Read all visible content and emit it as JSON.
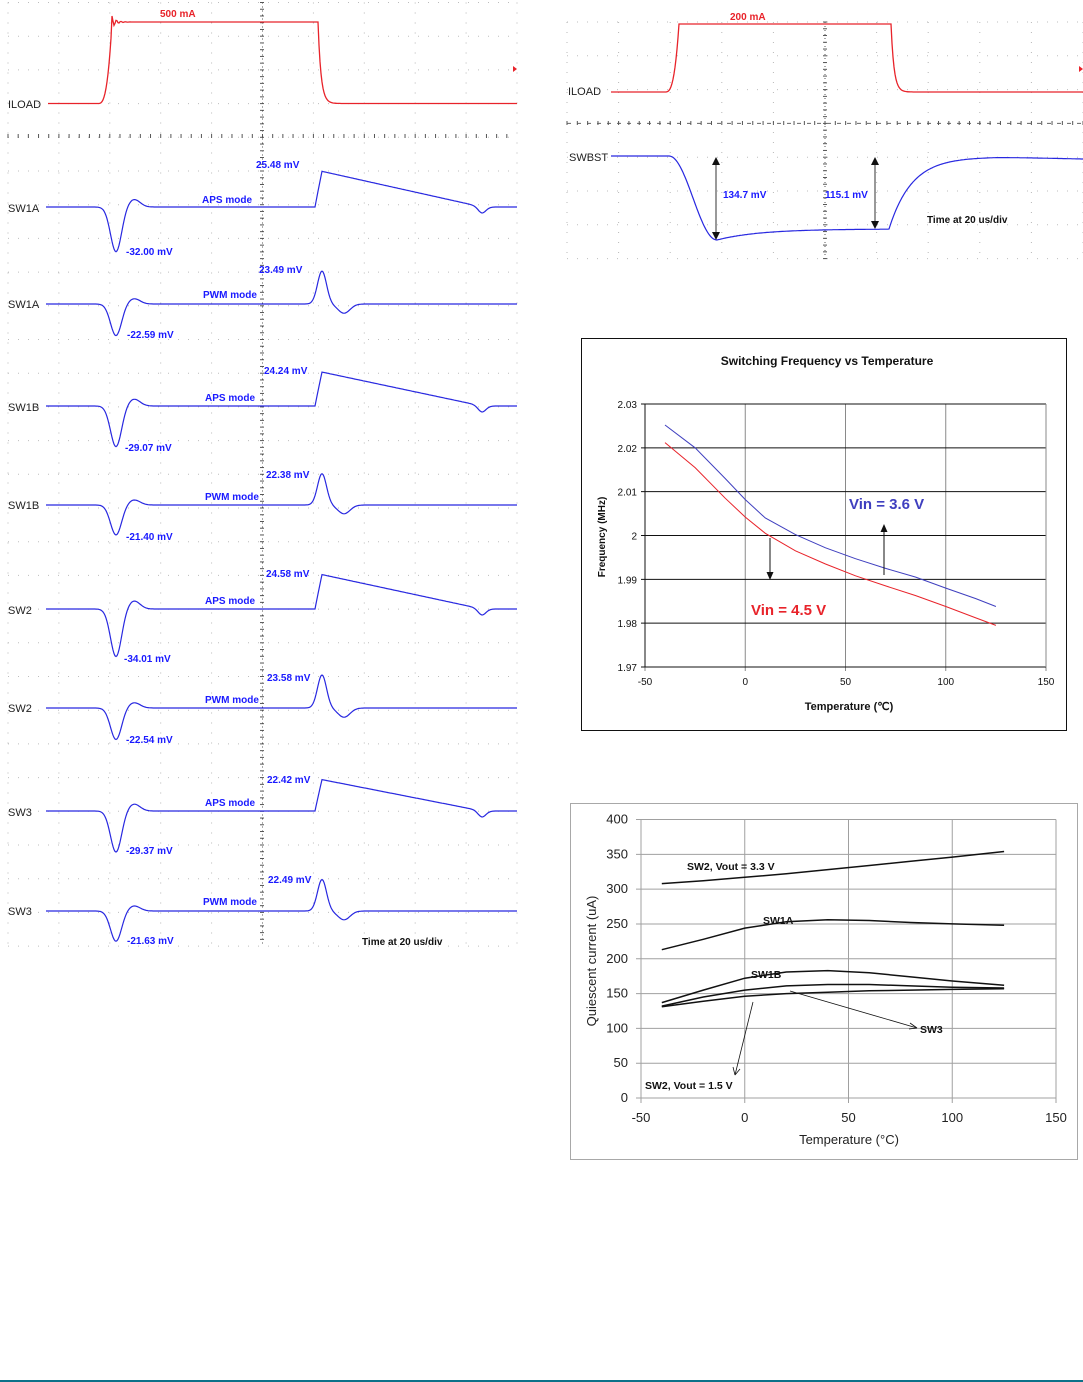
{
  "colors": {
    "load_trace": "#e8232a",
    "voltage_trace": "#2828e0",
    "value_text": "#1a1aff",
    "vin_36": "#3f3fbf",
    "vin_45": "#e8232a",
    "footer_rule": "#0b7189"
  },
  "chart_data": [
    {
      "type": "line",
      "title": "",
      "description_kind": "oscilloscope load transient",
      "load": {
        "label": "ILOAD",
        "step": "500 mA"
      },
      "traces": [
        {
          "label": "SW1A",
          "mode": "APS mode",
          "overshoot": "25.48 mV",
          "undershoot": "-32.00 mV"
        },
        {
          "label": "SW1A",
          "mode": "PWM mode",
          "overshoot": "23.49 mV",
          "undershoot": "-22.59 mV"
        },
        {
          "label": "SW1B",
          "mode": "APS mode",
          "overshoot": "24.24 mV",
          "undershoot": "-29.07 mV"
        },
        {
          "label": "SW1B",
          "mode": "PWM mode",
          "overshoot": "22.38 mV",
          "undershoot": "-21.40 mV"
        },
        {
          "label": "SW2",
          "mode": "APS mode",
          "overshoot": "24.58 mV",
          "undershoot": "-34.01 mV"
        },
        {
          "label": "SW2",
          "mode": "PWM mode",
          "overshoot": "23.58 mV",
          "undershoot": "-22.54 mV"
        },
        {
          "label": "SW3",
          "mode": "APS mode",
          "overshoot": "22.42 mV",
          "undershoot": "-29.37 mV"
        },
        {
          "label": "SW3",
          "mode": "PWM mode",
          "overshoot": "22.49 mV",
          "undershoot": "-21.63 mV"
        }
      ],
      "timebase": "Time at 20 us/div"
    },
    {
      "type": "line",
      "description_kind": "oscilloscope load transient",
      "load": {
        "label": "ILOAD",
        "step": "200 mA"
      },
      "trace": {
        "label": "SWBST",
        "drop_on_step": "134.7 mV",
        "drop_steady": "115.1 mV"
      },
      "timebase": "Time at 20 us/div"
    },
    {
      "type": "line",
      "title": "Switching Frequency vs Temperature",
      "xlabel": "Temperature (℃)",
      "ylabel": "Frequency (MHz)",
      "xlim": [
        -50,
        150
      ],
      "ylim": [
        1.97,
        2.03
      ],
      "xticks": [
        "-50",
        "0",
        "50",
        "100",
        "150"
      ],
      "yticks": [
        "2.03",
        "2.02",
        "2.01",
        "2",
        "1.99",
        "1.98",
        "1.97"
      ],
      "grid": true,
      "x": [
        -40,
        -25,
        -10,
        0,
        10,
        25,
        40,
        55,
        70,
        85,
        100,
        115,
        125
      ],
      "series": [
        {
          "name": "Vin = 3.6 V",
          "values": [
            2.0252,
            2.02,
            2.013,
            2.0082,
            2.004,
            2.0002,
            1.9972,
            1.9947,
            1.9925,
            1.9905,
            1.988,
            1.9856,
            1.9838
          ]
        },
        {
          "name": "Vin = 4.5 V",
          "values": [
            2.0212,
            2.0155,
            2.0085,
            2.0042,
            2.0005,
            1.9965,
            1.9935,
            1.9908,
            1.9885,
            1.9863,
            1.9838,
            1.9812,
            1.9795
          ]
        }
      ]
    },
    {
      "type": "line",
      "title": "",
      "xlabel": "Temperature (°C)",
      "ylabel": "Quiescent current (uA)",
      "xlim": [
        -50,
        150
      ],
      "ylim": [
        0,
        400
      ],
      "xticks": [
        "-50",
        "0",
        "50",
        "100",
        "150"
      ],
      "yticks": [
        "400",
        "350",
        "300",
        "250",
        "200",
        "150",
        "100",
        "50",
        "0"
      ],
      "grid": true,
      "x": [
        -40,
        -20,
        0,
        20,
        40,
        60,
        80,
        100,
        125
      ],
      "series": [
        {
          "name": "SW2, Vout = 3.3 V",
          "values": [
            308,
            312,
            317,
            322,
            328,
            334,
            340,
            346,
            354
          ]
        },
        {
          "name": "SW1A",
          "values": [
            213,
            228,
            244,
            253,
            256,
            255,
            252,
            250,
            248
          ]
        },
        {
          "name": "SW1B",
          "values": [
            137,
            155,
            172,
            181,
            183,
            180,
            174,
            168,
            162
          ]
        },
        {
          "name": "SW3",
          "values": [
            132,
            145,
            155,
            161,
            163,
            163,
            161,
            159,
            158
          ]
        },
        {
          "name": "SW2, Vout = 1.5 V",
          "values": [
            131,
            139,
            146,
            150,
            152,
            154,
            155,
            156,
            157
          ]
        }
      ]
    }
  ]
}
